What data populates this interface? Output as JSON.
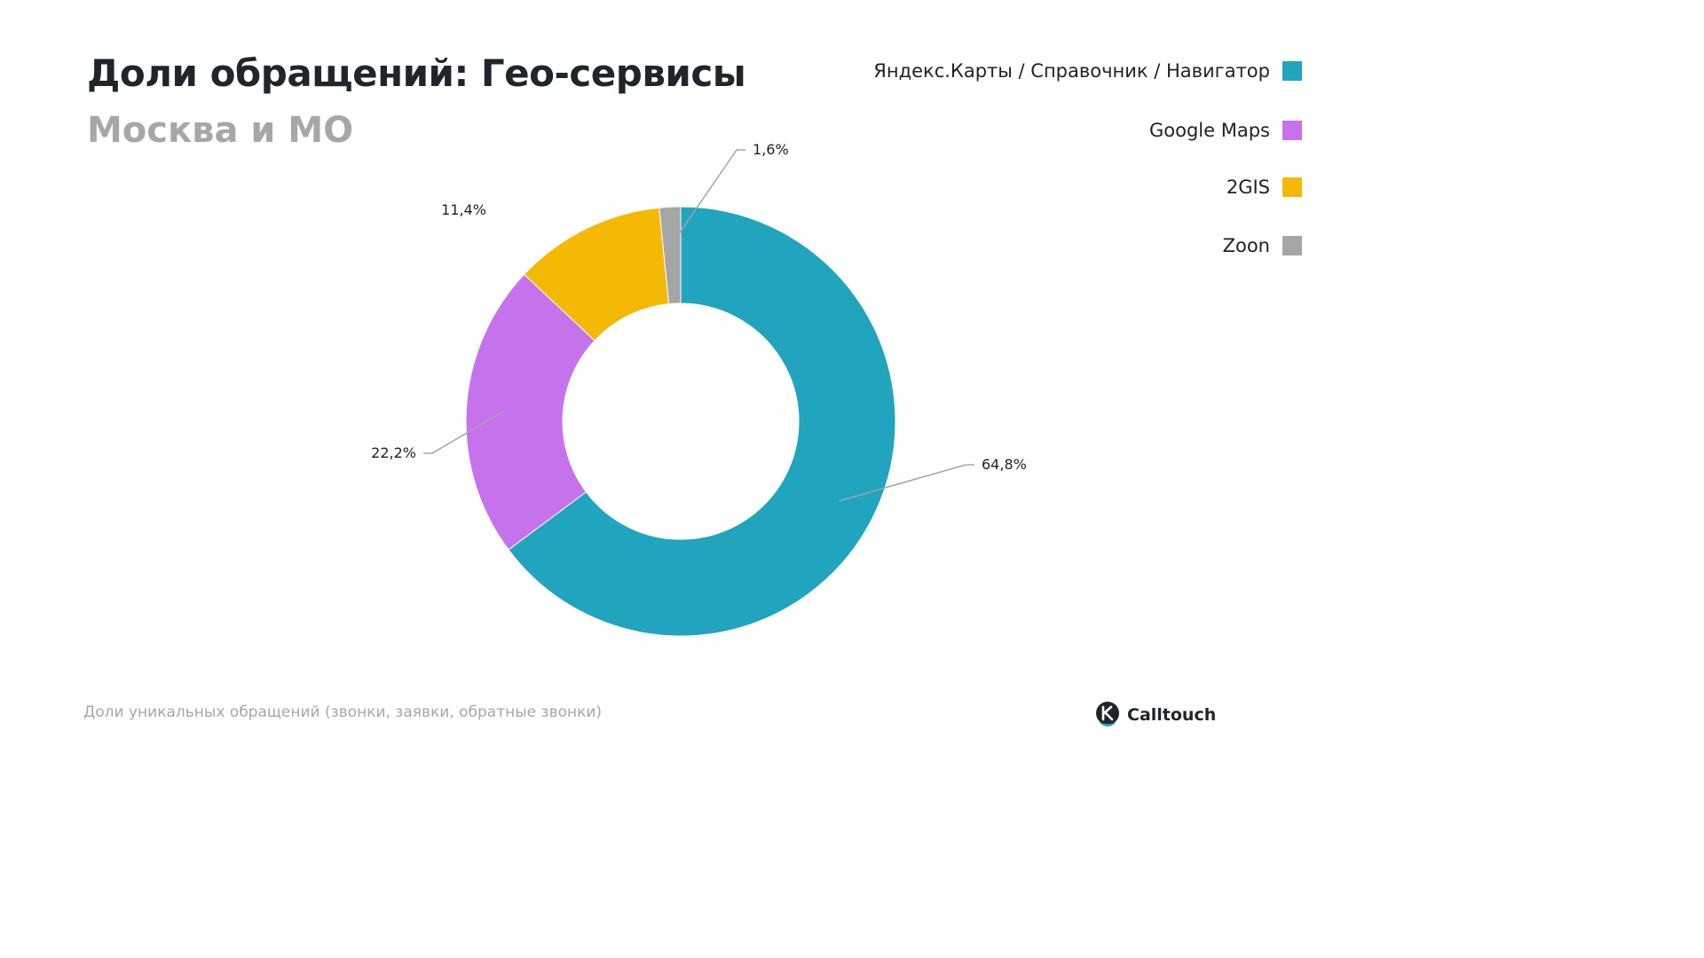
{
  "header": {
    "title": "Доли обращений: Гео-сервисы",
    "subtitle": "Москва и МО"
  },
  "legend": [
    {
      "label": "Яндекс.Карты / Справочник / Навигатор",
      "color": "#21a4be"
    },
    {
      "label": "Google Maps",
      "color": "#c672ec"
    },
    {
      "label": "2GIS",
      "color": "#f3b904"
    },
    {
      "label": "Zoon",
      "color": "#a5a5a5"
    }
  ],
  "chart_data": {
    "type": "pie",
    "donut": true,
    "legend_position": "top-right",
    "categories": [
      "Яндекс.Карты / Справочник / Навигатор",
      "Google Maps",
      "2GIS",
      "Zoon"
    ],
    "values": [
      64.8,
      22.2,
      11.4,
      1.6
    ],
    "value_labels": [
      "64,8%",
      "22,2%",
      "11,4%",
      "1,6%"
    ],
    "colors": [
      "#21a4be",
      "#c672ec",
      "#f3b904",
      "#a5a5a5"
    ]
  },
  "footer": {
    "note": "Доли уникальных обращений (звонки, заявки, обратные звонки)",
    "brand": "Calltouch"
  }
}
